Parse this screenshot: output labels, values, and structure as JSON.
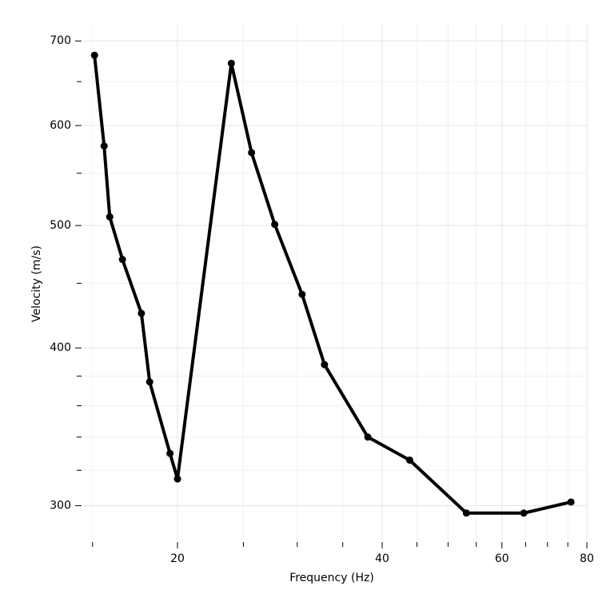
{
  "chart_data": {
    "type": "line",
    "xlabel": "Frequency (Hz)",
    "ylabel": "Velocity (m/s)",
    "x_scale": "log",
    "y_scale": "log",
    "grid": true,
    "xlim": [
      14.57,
      80.2
    ],
    "ylim": [
      282,
      722
    ],
    "xticks": [
      20,
      40,
      60,
      80
    ],
    "yticks": [
      300,
      400,
      500,
      600,
      700
    ],
    "minor_xticks": [
      15,
      25,
      30,
      35,
      45,
      50,
      55,
      65,
      70,
      75
    ],
    "minor_yticks": [
      320,
      340,
      360,
      380,
      450,
      550,
      650
    ],
    "x": [
      15.1,
      15.6,
      15.9,
      16.6,
      17.7,
      18.2,
      19.5,
      20.0,
      24.0,
      25.7,
      27.8,
      30.5,
      32.9,
      38.1,
      43.9,
      53.2,
      64.6,
      75.8
    ],
    "series": [
      {
        "color": "#000000",
        "values": [
          682,
          578,
          508,
          470,
          426,
          376,
          330,
          315,
          672,
          571,
          501,
          441,
          388,
          340,
          326,
          296,
          296,
          302
        ]
      }
    ]
  }
}
